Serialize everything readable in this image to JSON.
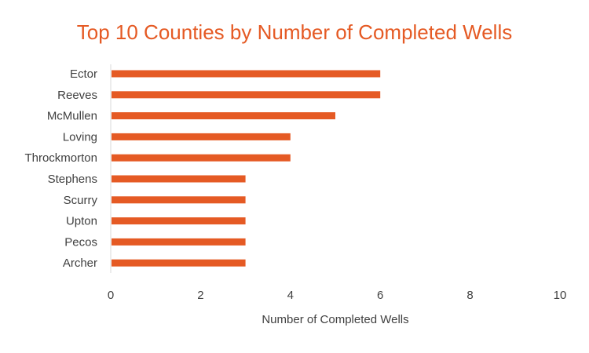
{
  "chart_data": {
    "type": "bar",
    "orientation": "horizontal",
    "title": "Top 10 Counties by Number of Completed Wells",
    "xlabel": "Number of Completed Wells",
    "ylabel": "",
    "categories": [
      "Ector",
      "Reeves",
      "McMullen",
      "Loving",
      "Throckmorton",
      "Stephens",
      "Scurry",
      "Upton",
      "Pecos",
      "Archer"
    ],
    "values": [
      6,
      6,
      5,
      4,
      4,
      3,
      3,
      3,
      3,
      3
    ],
    "xlim": [
      0,
      10
    ],
    "xticks": [
      "0",
      "2",
      "4",
      "6",
      "8",
      "10"
    ],
    "grid": false,
    "legend": "none",
    "bar_color": "#E55A24",
    "title_color": "#E55A24",
    "axis_color": "#D9D9D9",
    "label_color": "#404040"
  }
}
